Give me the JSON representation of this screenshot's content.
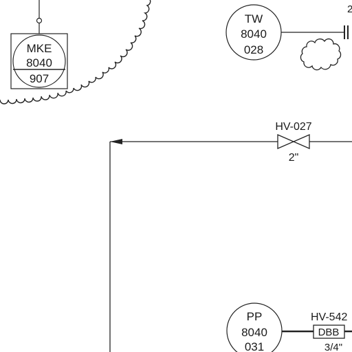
{
  "instruments": {
    "mke": {
      "tag": "MKE",
      "loop": "8040",
      "number": "907"
    },
    "tw": {
      "tag": "TW",
      "loop": "8040",
      "number": "028"
    },
    "pp": {
      "tag": "PP",
      "loop": "8040",
      "number": "031"
    }
  },
  "valves": {
    "hv027": {
      "tag": "HV-027",
      "size": "2\""
    },
    "hv542": {
      "tag": "HV-542",
      "type": "DBB",
      "size": "3/4\""
    }
  },
  "edge_fragment": "2"
}
